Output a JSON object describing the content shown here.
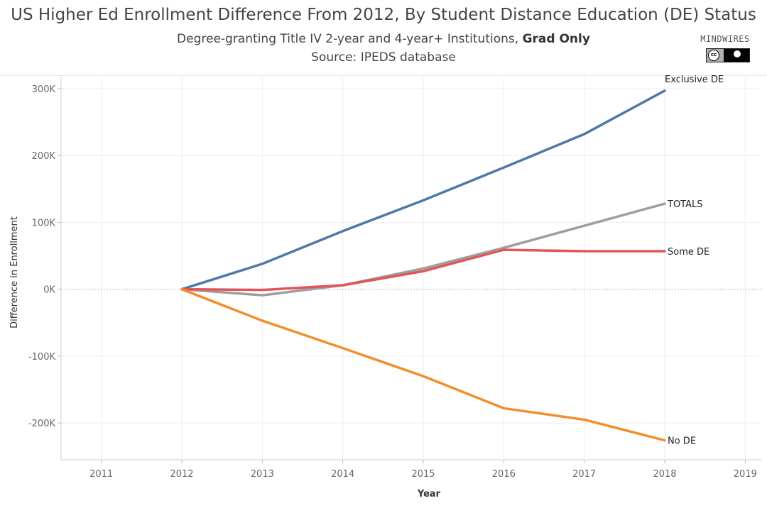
{
  "chart_data": {
    "type": "line",
    "title": "US Higher Ed Enrollment Difference From 2012, By Student Distance Education (DE) Status",
    "subtitle_prefix": "Degree-granting Title IV 2-year and 4-year+ Institutions, ",
    "subtitle_bold": "Grad Only",
    "source": "Source: IPEDS database",
    "xlabel": "Year",
    "ylabel": "Difference in Enrollment",
    "xlim": [
      2010.5,
      2019.2
    ],
    "ylim": [
      -255000,
      318000
    ],
    "x_ticks": [
      2011,
      2012,
      2013,
      2014,
      2015,
      2016,
      2017,
      2018,
      2019
    ],
    "y_ticks": [
      300000,
      200000,
      100000,
      0,
      -100000,
      -200000
    ],
    "y_tick_labels": [
      "300K",
      "200K",
      "100K",
      "0K",
      "-100K",
      "-200K"
    ],
    "x": [
      2012,
      2013,
      2014,
      2015,
      2016,
      2017,
      2018
    ],
    "series": [
      {
        "name": "Exclusive DE",
        "color": "#4e79a7",
        "values": [
          0,
          38000,
          87000,
          133000,
          182000,
          232000,
          297000
        ]
      },
      {
        "name": "TOTALS",
        "color": "#9e9e9e",
        "values": [
          0,
          -9000,
          6000,
          31000,
          62000,
          95000,
          128000
        ]
      },
      {
        "name": "Some DE",
        "color": "#e15759",
        "values": [
          0,
          -1000,
          6000,
          27000,
          59000,
          57000,
          57000
        ]
      },
      {
        "name": "No DE",
        "color": "#f28e2b",
        "values": [
          0,
          -47000,
          -88000,
          -130000,
          -178000,
          -195000,
          -226000
        ]
      }
    ],
    "grid": true,
    "zero_line": "dotted"
  },
  "logo": {
    "text": "MINDWIRES",
    "badge_cc": "cc",
    "badge_by": "BY"
  }
}
